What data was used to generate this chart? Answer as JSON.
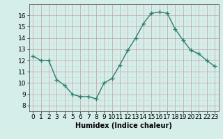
{
  "x": [
    0,
    1,
    2,
    3,
    4,
    5,
    6,
    7,
    8,
    9,
    10,
    11,
    12,
    13,
    14,
    15,
    16,
    17,
    18,
    19,
    20,
    21,
    22,
    23
  ],
  "y": [
    12.4,
    12.0,
    12.0,
    10.3,
    9.8,
    9.0,
    8.8,
    8.8,
    8.6,
    10.0,
    10.4,
    11.6,
    12.9,
    14.0,
    15.3,
    16.2,
    16.3,
    16.2,
    14.8,
    13.8,
    12.9,
    12.6,
    12.0,
    11.5
  ],
  "line_color": "#2e7d6e",
  "marker": "+",
  "marker_size": 4,
  "bg_color": "#d6eeea",
  "grid_color_major": "#c0a0a0",
  "grid_color_minor": "#c8ddd9",
  "xlabel": "Humidex (Indice chaleur)",
  "xlim": [
    -0.5,
    23.5
  ],
  "ylim": [
    8,
    17
  ],
  "yticks": [
    8,
    9,
    10,
    11,
    12,
    13,
    14,
    15,
    16
  ],
  "xtick_labels": [
    "0",
    "1",
    "2",
    "3",
    "4",
    "5",
    "6",
    "7",
    "8",
    "9",
    "10",
    "11",
    "12",
    "13",
    "14",
    "15",
    "16",
    "17",
    "18",
    "19",
    "20",
    "21",
    "22",
    "23"
  ],
  "xlabel_fontsize": 7,
  "tick_fontsize": 6.5,
  "line_width": 1.0
}
